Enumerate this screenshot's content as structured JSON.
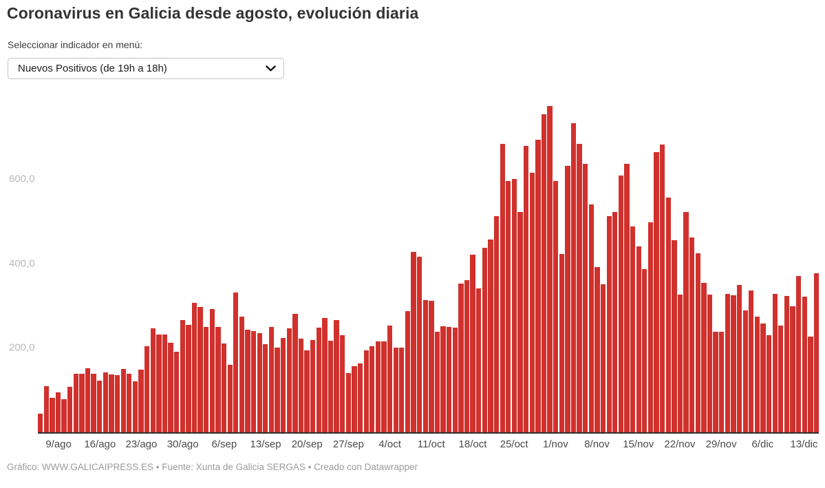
{
  "title": "Coronavirus en Galicia desde agosto, evolución diaria",
  "subtitle": "Seleccionar indicador en menú:",
  "dropdown": {
    "selected_option": "Nuevos Positivos (de 19h a 18h)"
  },
  "footer": "Gráfico: WWW.GALICAIPRESS.ES • Fuente: Xunta de Galicia SERGAS • Creado con Datawrapper",
  "colors": {
    "bar": "#d0312d",
    "axis_line": "#2e2e2e",
    "y_tick_label": "#b9b9b9",
    "x_tick_label": "#4a4a4a",
    "title": "#333333",
    "footer": "#9b9b9b"
  },
  "chart_data": {
    "type": "bar",
    "title": "Coronavirus en Galicia desde agosto, evolución diaria",
    "series_name": "Nuevos Positivos (de 19h a 18h)",
    "xlabel": "",
    "ylabel": "",
    "ylim": [
      0,
      800
    ],
    "grid": false,
    "legend": false,
    "y_ticks": [
      {
        "value": 200,
        "label": "200,0"
      },
      {
        "value": 400,
        "label": "400,0"
      },
      {
        "value": 600,
        "label": "600,0"
      }
    ],
    "x_ticks": [
      {
        "index": 3,
        "label": "9/ago"
      },
      {
        "index": 10,
        "label": "16/ago"
      },
      {
        "index": 17,
        "label": "23/ago"
      },
      {
        "index": 24,
        "label": "30/ago"
      },
      {
        "index": 31,
        "label": "6/sep"
      },
      {
        "index": 38,
        "label": "13/sep"
      },
      {
        "index": 45,
        "label": "20/sep"
      },
      {
        "index": 52,
        "label": "27/sep"
      },
      {
        "index": 59,
        "label": "4/oct"
      },
      {
        "index": 66,
        "label": "11/oct"
      },
      {
        "index": 73,
        "label": "18/oct"
      },
      {
        "index": 80,
        "label": "25/oct"
      },
      {
        "index": 87,
        "label": "1/nov"
      },
      {
        "index": 94,
        "label": "8/nov"
      },
      {
        "index": 101,
        "label": "15/nov"
      },
      {
        "index": 108,
        "label": "22/nov"
      },
      {
        "index": 115,
        "label": "29/nov"
      },
      {
        "index": 122,
        "label": "6/dic"
      },
      {
        "index": 129,
        "label": "13/dic"
      }
    ],
    "values": [
      44,
      110,
      82,
      95,
      79,
      108,
      139,
      138,
      152,
      139,
      122,
      141,
      137,
      135,
      150,
      139,
      121,
      149,
      203,
      246,
      232,
      231,
      212,
      190,
      265,
      254,
      307,
      297,
      250,
      292,
      250,
      211,
      159,
      330,
      273,
      242,
      240,
      234,
      208,
      250,
      200,
      224,
      246,
      280,
      221,
      194,
      219,
      247,
      270,
      216,
      265,
      229,
      140,
      157,
      163,
      194,
      204,
      215,
      215,
      253,
      201,
      201,
      287,
      427,
      415,
      313,
      311,
      238,
      251,
      249,
      247,
      352,
      360,
      420,
      341,
      437,
      456,
      512,
      683,
      595,
      600,
      522,
      678,
      615,
      692,
      752,
      772,
      595,
      422,
      630,
      732,
      682,
      636,
      540,
      391,
      350,
      512,
      521,
      608,
      636,
      487,
      440,
      386,
      497,
      663,
      681,
      556,
      455,
      326,
      522,
      461,
      424,
      354,
      326,
      238,
      238,
      328,
      325,
      348,
      289,
      336,
      274,
      258,
      230,
      327,
      253,
      322,
      299,
      370,
      321,
      226,
      377
    ]
  }
}
